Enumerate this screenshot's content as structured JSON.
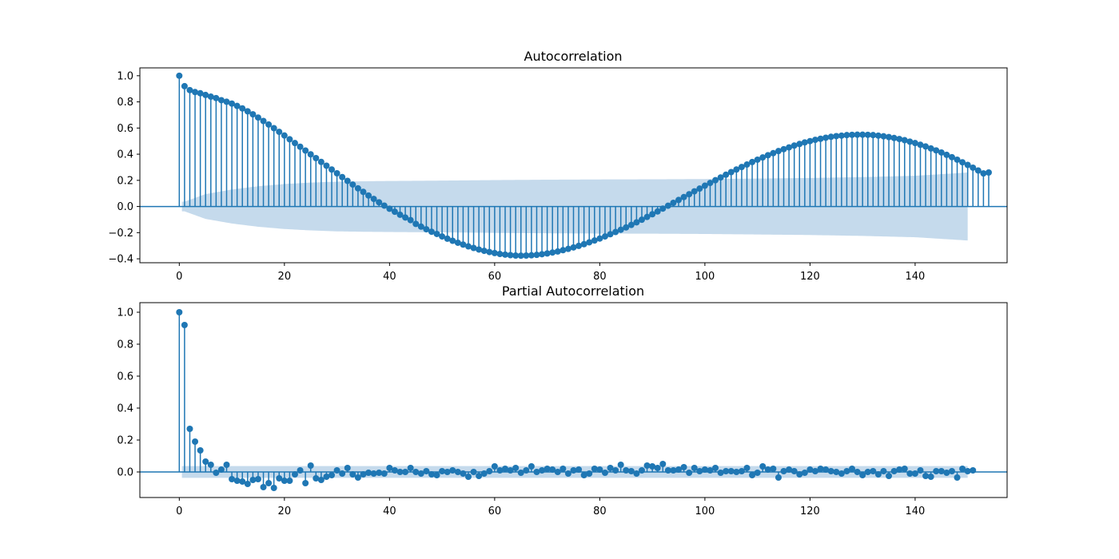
{
  "colors": {
    "stem": "#1f77b4",
    "band": "#c5daec",
    "axes": "#000000"
  },
  "chart_data": [
    {
      "type": "stem",
      "title": "Autocorrelation",
      "xlabel": "",
      "ylabel": "",
      "xlim": [
        -7.5,
        157.5
      ],
      "ylim": [
        -0.43,
        1.06
      ],
      "xticks": [
        0,
        20,
        40,
        60,
        80,
        100,
        120,
        140
      ],
      "yticks": [
        -0.4,
        -0.2,
        0.0,
        0.2,
        0.4,
        0.6,
        0.8,
        1.0
      ],
      "xtick_labels": [
        "0",
        "20",
        "40",
        "60",
        "80",
        "100",
        "120",
        "140"
      ],
      "ytick_labels": [
        "−0.4",
        "−0.2",
        "0.0",
        "0.2",
        "0.4",
        "0.6",
        "0.8",
        "1.0"
      ],
      "grid": false,
      "lags": {
        "start": 0,
        "end": 150
      },
      "values": [
        1.0,
        0.92,
        0.89,
        0.875,
        0.866,
        0.853,
        0.84,
        0.829,
        0.813,
        0.801,
        0.787,
        0.769,
        0.75,
        0.728,
        0.705,
        0.68,
        0.654,
        0.627,
        0.599,
        0.571,
        0.543,
        0.514,
        0.485,
        0.457,
        0.428,
        0.399,
        0.37,
        0.341,
        0.312,
        0.283,
        0.254,
        0.225,
        0.196,
        0.168,
        0.139,
        0.112,
        0.084,
        0.058,
        0.032,
        0.007,
        -0.017,
        -0.04,
        -0.063,
        -0.084,
        -0.104,
        -0.133,
        -0.154,
        -0.174,
        -0.193,
        -0.21,
        -0.229,
        -0.246,
        -0.262,
        -0.277,
        -0.291,
        -0.305,
        -0.317,
        -0.329,
        -0.339,
        -0.348,
        -0.356,
        -0.363,
        -0.368,
        -0.372,
        -0.375,
        -0.376,
        -0.375,
        -0.373,
        -0.37,
        -0.365,
        -0.359,
        -0.352,
        -0.344,
        -0.334,
        -0.324,
        -0.313,
        -0.301,
        -0.288,
        -0.274,
        -0.26,
        -0.245,
        -0.229,
        -0.212,
        -0.195,
        -0.178,
        -0.16,
        -0.141,
        -0.121,
        -0.101,
        -0.08,
        -0.059,
        -0.038,
        -0.016,
        0.006,
        0.028,
        0.05,
        0.072,
        0.094,
        0.116,
        0.137,
        0.159,
        0.18,
        0.201,
        0.222,
        0.243,
        0.263,
        0.283,
        0.302,
        0.321,
        0.34,
        0.358,
        0.375,
        0.392,
        0.408,
        0.424,
        0.438,
        0.452,
        0.466,
        0.478,
        0.49,
        0.5,
        0.51,
        0.518,
        0.526,
        0.533,
        0.538,
        0.542,
        0.546,
        0.548,
        0.549,
        0.549,
        0.548,
        0.546,
        0.542,
        0.537,
        0.531,
        0.524,
        0.516,
        0.507,
        0.496,
        0.485,
        0.472,
        0.459,
        0.444,
        0.429,
        0.413,
        0.395,
        0.377,
        0.358,
        0.338,
        0.318,
        0.297,
        0.275,
        0.253,
        0.26
      ],
      "confidence_band": [
        [
          1,
          0.037
        ],
        [
          5,
          0.095
        ],
        [
          10,
          0.13
        ],
        [
          15,
          0.155
        ],
        [
          20,
          0.172
        ],
        [
          25,
          0.183
        ],
        [
          30,
          0.19
        ],
        [
          35,
          0.193
        ],
        [
          40,
          0.195
        ],
        [
          50,
          0.198
        ],
        [
          60,
          0.202
        ],
        [
          70,
          0.205
        ],
        [
          80,
          0.207
        ],
        [
          90,
          0.208
        ],
        [
          100,
          0.21
        ],
        [
          110,
          0.214
        ],
        [
          120,
          0.218
        ],
        [
          130,
          0.225
        ],
        [
          140,
          0.235
        ],
        [
          150,
          0.26
        ]
      ]
    },
    {
      "type": "stem",
      "title": "Partial Autocorrelation",
      "xlabel": "",
      "ylabel": "",
      "xlim": [
        -7.5,
        157.5
      ],
      "ylim": [
        -0.16,
        1.06
      ],
      "xticks": [
        0,
        20,
        40,
        60,
        80,
        100,
        120,
        140
      ],
      "yticks": [
        0.0,
        0.2,
        0.4,
        0.6,
        0.8,
        1.0
      ],
      "xtick_labels": [
        "0",
        "20",
        "40",
        "60",
        "80",
        "100",
        "120",
        "140"
      ],
      "ytick_labels": [
        "0.0",
        "0.2",
        "0.4",
        "0.6",
        "0.8",
        "1.0"
      ],
      "grid": false,
      "lags": {
        "start": 0,
        "end": 150
      },
      "values": [
        1.0,
        0.92,
        0.27,
        0.19,
        0.135,
        0.065,
        0.045,
        -0.005,
        0.015,
        0.045,
        -0.045,
        -0.055,
        -0.06,
        -0.075,
        -0.05,
        -0.045,
        -0.095,
        -0.07,
        -0.1,
        -0.04,
        -0.055,
        -0.055,
        -0.015,
        0.01,
        -0.07,
        0.04,
        -0.04,
        -0.05,
        -0.03,
        -0.02,
        0.01,
        -0.01,
        0.025,
        -0.015,
        -0.035,
        -0.015,
        -0.005,
        -0.01,
        -0.005,
        -0.01,
        0.025,
        0.01,
        0.0,
        0.0,
        0.025,
        0.0,
        -0.01,
        0.005,
        -0.015,
        -0.02,
        0.005,
        0.0,
        0.01,
        0.0,
        -0.01,
        -0.03,
        0.0,
        -0.025,
        -0.01,
        0.005,
        0.035,
        0.01,
        0.02,
        0.01,
        0.025,
        -0.005,
        0.01,
        0.035,
        0.0,
        0.01,
        0.02,
        0.015,
        0.0,
        0.02,
        -0.01,
        0.01,
        0.015,
        -0.02,
        -0.01,
        0.02,
        0.015,
        -0.005,
        0.025,
        0.01,
        0.045,
        0.01,
        0.005,
        -0.01,
        0.01,
        0.04,
        0.035,
        0.025,
        0.05,
        0.01,
        0.01,
        0.015,
        0.03,
        -0.005,
        0.025,
        0.005,
        0.015,
        0.01,
        0.025,
        -0.005,
        0.005,
        0.005,
        0.0,
        0.005,
        0.025,
        -0.02,
        -0.005,
        0.035,
        0.015,
        0.02,
        -0.035,
        0.005,
        0.015,
        0.005,
        -0.015,
        -0.005,
        0.015,
        0.005,
        0.02,
        0.015,
        0.005,
        0.0,
        -0.01,
        0.005,
        0.02,
        0.0,
        -0.02,
        0.0,
        0.005,
        -0.015,
        0.005,
        -0.025,
        0.005,
        0.015,
        0.02,
        -0.01,
        -0.01,
        0.01,
        -0.025,
        -0.03,
        0.005,
        0.005,
        -0.005,
        0.005,
        -0.035,
        0.02,
        0.005,
        0.01
      ],
      "confidence_band": [
        [
          1,
          0.037
        ],
        [
          150,
          0.037
        ]
      ]
    }
  ]
}
